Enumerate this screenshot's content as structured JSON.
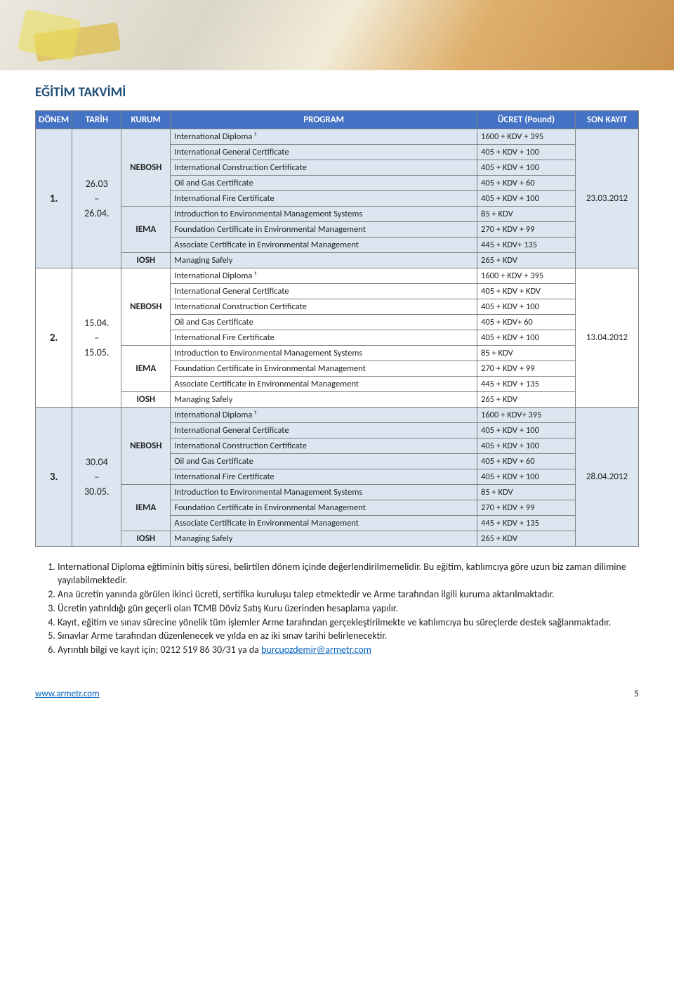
{
  "page_title": "EĞİTİM TAKVİMİ",
  "headers": {
    "donem": "DÖNEM",
    "tarih": "TARİH",
    "kurum": "KURUM",
    "program": "PROGRAM",
    "ucret": "ÜCRET (Pound)",
    "son": "SON KAYIT"
  },
  "colors": {
    "header_bg": "#4472c4",
    "header_fg": "#ffffff",
    "band_a": "#dce6f1",
    "band_b": "#ffffff",
    "title": "#1f4e79",
    "link": "#0563c1",
    "border": "#808080"
  },
  "periods": [
    {
      "num": "1.",
      "dates": "26.03 – 26.04.",
      "reg": "23.03.2012",
      "band": "band-a",
      "orgs": [
        {
          "name": "NEBOSH",
          "rows": [
            {
              "prog": "International Diploma ¹",
              "price": "1600 + KDV + 395"
            },
            {
              "prog": "International General Certificate",
              "price": "405 + KDV + 100"
            },
            {
              "prog": "International Construction Certificate",
              "price": "405 + KDV + 100"
            },
            {
              "prog": "Oil and Gas Certificate",
              "price": "405 + KDV + 60"
            },
            {
              "prog": "International Fire Certificate",
              "price": "405 + KDV + 100"
            }
          ]
        },
        {
          "name": "IEMA",
          "rows": [
            {
              "prog": "Introduction to Environmental Management Systems",
              "price": "85 + KDV"
            },
            {
              "prog": "Foundation Certificate in Environmental Management",
              "price": "270 + KDV + 99"
            },
            {
              "prog": "Associate Certificate in Environmental Management",
              "price": "445 + KDV+ 135"
            }
          ]
        },
        {
          "name": "IOSH",
          "rows": [
            {
              "prog": "Managing Safely",
              "price": "265 + KDV"
            }
          ]
        }
      ]
    },
    {
      "num": "2.",
      "dates": "15.04. – 15.05.",
      "reg": "13.04.2012",
      "band": "band-b",
      "orgs": [
        {
          "name": "NEBOSH",
          "rows": [
            {
              "prog": "International Diploma ¹",
              "price": "1600 + KDV + 395"
            },
            {
              "prog": "International General Certificate",
              "price": "405 + KDV + KDV"
            },
            {
              "prog": "International Construction Certificate",
              "price": "405 + KDV + 100"
            },
            {
              "prog": "Oil and Gas Certificate",
              "price": "405 + KDV+ 60"
            },
            {
              "prog": "International Fire Certificate",
              "price": "405 + KDV + 100"
            }
          ]
        },
        {
          "name": "IEMA",
          "rows": [
            {
              "prog": "Introduction to Environmental Management Systems",
              "price": "85 + KDV"
            },
            {
              "prog": "Foundation Certificate in Environmental Management",
              "price": "270 + KDV +  99"
            },
            {
              "prog": "Associate Certificate in Environmental Management",
              "price": "445 + KDV + 135"
            }
          ]
        },
        {
          "name": "IOSH",
          "rows": [
            {
              "prog": "Managing Safely",
              "price": "265 + KDV"
            }
          ]
        }
      ]
    },
    {
      "num": "3.",
      "dates": "30.04 – 30.05.",
      "reg": "28.04.2012",
      "band": "band-a",
      "orgs": [
        {
          "name": "NEBOSH",
          "rows": [
            {
              "prog": "International Diploma ¹",
              "price": "1600 + KDV+ 395"
            },
            {
              "prog": "International General Certificate",
              "price": "405 + KDV + 100"
            },
            {
              "prog": "International Construction Certificate",
              "price": "405 + KDV + 100"
            },
            {
              "prog": "Oil and Gas Certificate",
              "price": "405 + KDV + 60"
            },
            {
              "prog": "International Fire Certificate",
              "price": "405 + KDV + 100"
            }
          ]
        },
        {
          "name": "IEMA",
          "rows": [
            {
              "prog": "Introduction to Environmental Management Systems",
              "price": "85 + KDV"
            },
            {
              "prog": "Foundation Certificate in Environmental Management",
              "price": "270 + KDV +  99"
            },
            {
              "prog": "Associate Certificate in Environmental Management",
              "price": "445 + KDV + 135"
            }
          ]
        },
        {
          "name": "IOSH",
          "rows": [
            {
              "prog": "Managing Safely",
              "price": "265 + KDV"
            }
          ]
        }
      ]
    }
  ],
  "notes": [
    "International Diploma eğtiminin bitiş süresi, belirtilen dönem içinde değerlendirilmemelidir. Bu eğitim, katılımcıya göre uzun biz zaman dilimine yayılabilmektedir.",
    "Ana ücretin yanında görülen ikinci ücreti, sertifika kuruluşu talep etmektedir ve Arme tarafından ilgili kuruma aktarılmaktadır.",
    "Ücretin yatırıldığı gün geçerli olan TCMB Döviz Satış Kuru üzerinden hesaplama yapılır.",
    "Kayıt, eğitim ve sınav sürecine yönelik tüm işlemler Arme tarafından gerçekleştirilmekte ve katılımcıya bu süreçlerde destek sağlanmaktadır.",
    "Sınavlar Arme tarafından düzenlenecek ve yılda en az iki sınav tarihi belirlenecektir."
  ],
  "note6_prefix": "Ayrıntılı bilgi ve kayıt için; 0212 519 86 30/31 ya da ",
  "note6_email": "burcuozdemir@armetr.com",
  "footer_url": "www.armetr.com",
  "footer_page": "5"
}
